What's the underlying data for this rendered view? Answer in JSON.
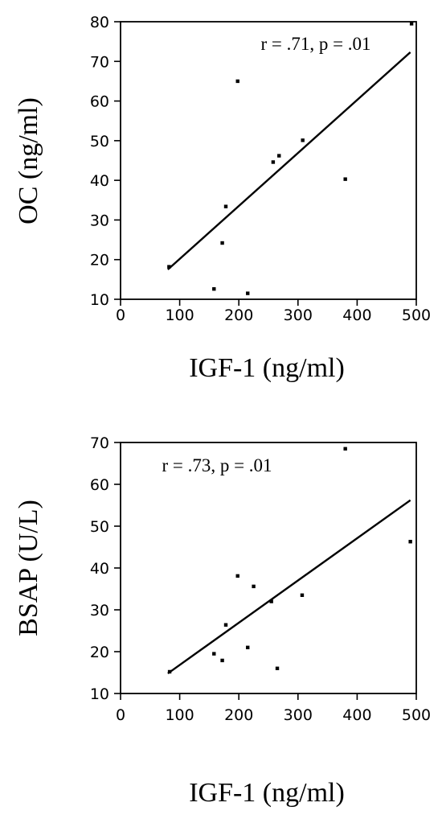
{
  "chart_data": [
    {
      "type": "scatter",
      "title": "",
      "xlabel": "IGF-1 (ng/ml)",
      "ylabel": "OC (ng/ml)",
      "annotation": "r = .71, p = .01",
      "xlim": [
        0,
        500
      ],
      "ylim": [
        10,
        80
      ],
      "x_ticks": [
        "0",
        "100",
        "200",
        "300",
        "400",
        "500"
      ],
      "y_ticks": [
        "10",
        "20",
        "30",
        "40",
        "50",
        "60",
        "70",
        "80"
      ],
      "grid": false,
      "series": [
        {
          "points": [
            {
              "x": 82,
              "y": 18.2
            },
            {
              "x": 158,
              "y": 12.6
            },
            {
              "x": 172,
              "y": 24.2
            },
            {
              "x": 178,
              "y": 33.4
            },
            {
              "x": 198,
              "y": 65
            },
            {
              "x": 215,
              "y": 11.5
            },
            {
              "x": 258,
              "y": 44.6
            },
            {
              "x": 268,
              "y": 46.2
            },
            {
              "x": 308,
              "y": 50.1
            },
            {
              "x": 380,
              "y": 40.3
            },
            {
              "x": 492,
              "y": 79.5
            }
          ]
        }
      ],
      "fit_line": {
        "x": [
          80,
          490
        ],
        "y": [
          17.5,
          72.3
        ]
      }
    },
    {
      "type": "scatter",
      "title": "",
      "xlabel": "IGF-1 (ng/ml)",
      "ylabel": "BSAP (U/L)",
      "annotation": "r = .73, p = .01",
      "xlim": [
        0,
        500
      ],
      "ylim": [
        10,
        70
      ],
      "x_ticks": [
        "0",
        "100",
        "200",
        "300",
        "400",
        "500"
      ],
      "y_ticks": [
        "10",
        "20",
        "30",
        "40",
        "50",
        "60",
        "70"
      ],
      "grid": false,
      "series": [
        {
          "points": [
            {
              "x": 83,
              "y": 15.2
            },
            {
              "x": 158,
              "y": 19.5
            },
            {
              "x": 172,
              "y": 17.9
            },
            {
              "x": 178,
              "y": 26.4
            },
            {
              "x": 198,
              "y": 38.1
            },
            {
              "x": 215,
              "y": 21
            },
            {
              "x": 225,
              "y": 35.6
            },
            {
              "x": 255,
              "y": 32
            },
            {
              "x": 265,
              "y": 16
            },
            {
              "x": 307,
              "y": 33.5
            },
            {
              "x": 380,
              "y": 68.5
            },
            {
              "x": 490,
              "y": 46.3
            }
          ]
        }
      ],
      "fit_line": {
        "x": [
          80,
          490
        ],
        "y": [
          14.8,
          56.2
        ]
      }
    }
  ]
}
